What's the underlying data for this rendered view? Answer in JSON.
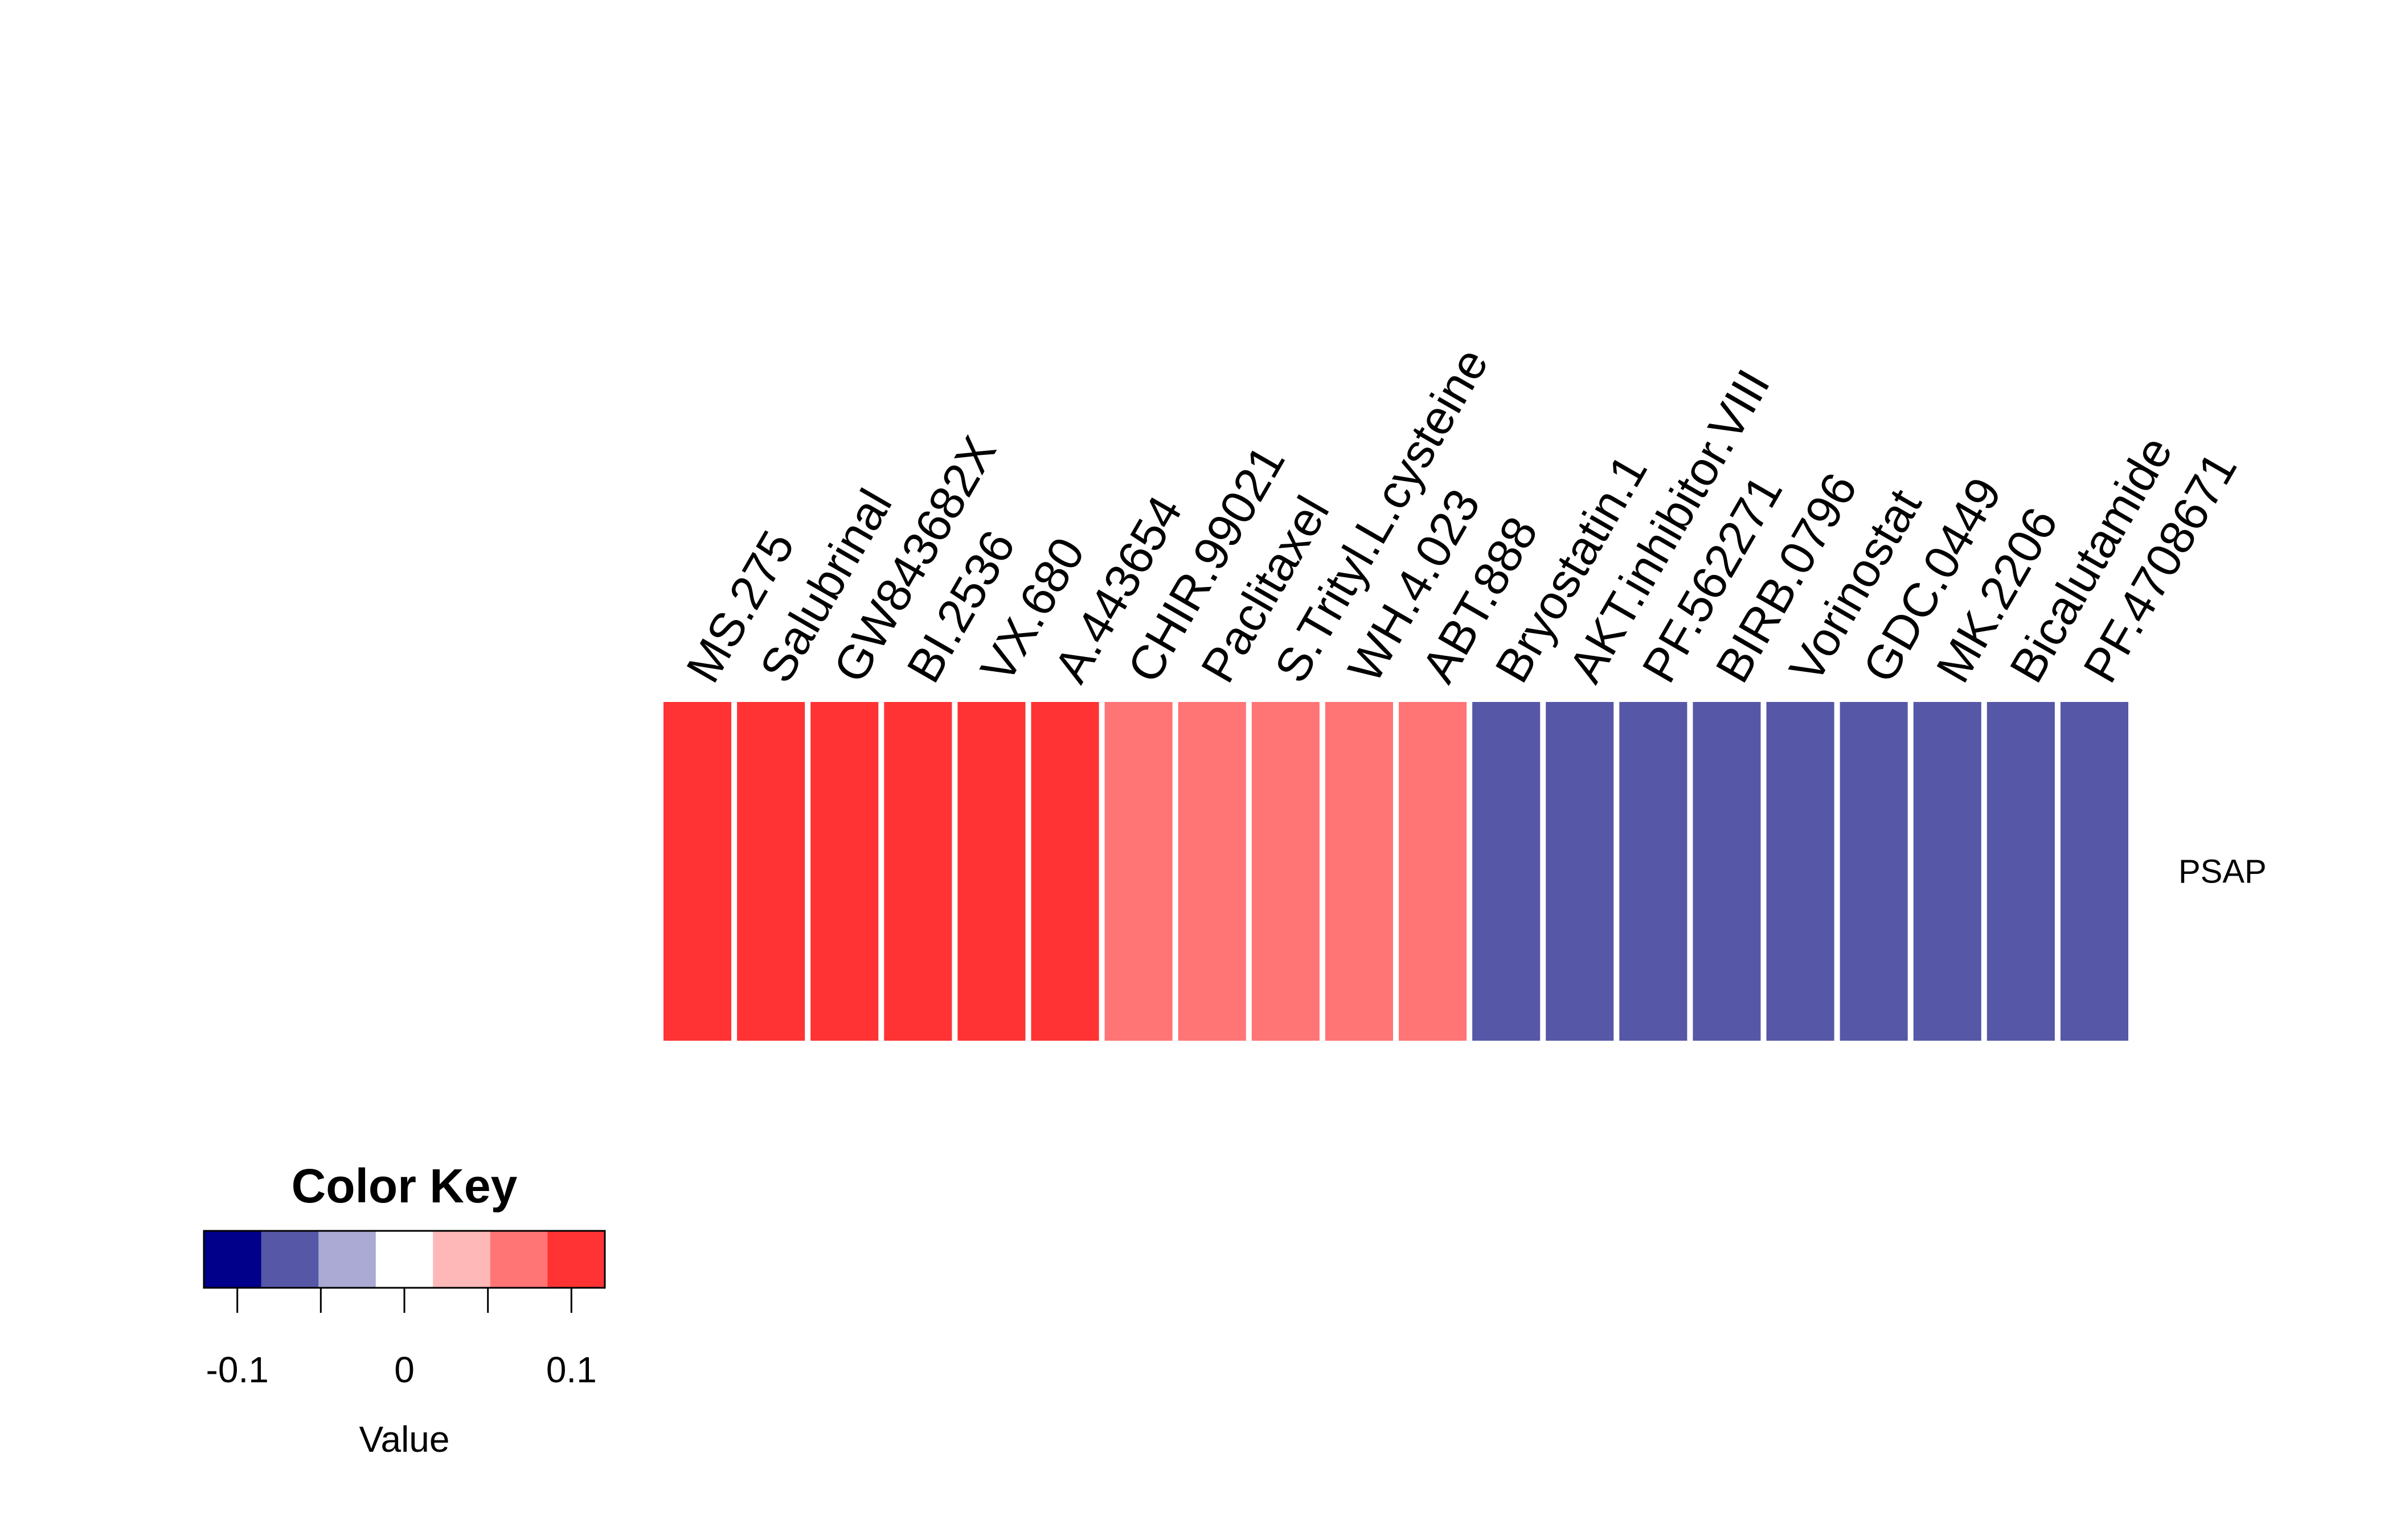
{
  "chart_data": {
    "type": "heatmap",
    "rows": [
      "PSAP"
    ],
    "columns": [
      "MS.275",
      "Salubrinal",
      "GW843682X",
      "BI.2536",
      "VX.680",
      "A.443654",
      "CHIR.99021",
      "Paclitaxel",
      "S.Trityl.L.cysteine",
      "WH.4.023",
      "ABT.888",
      "Bryostatin.1",
      "AKT.inhibitor.VIII",
      "PF.562271",
      "BIRB.0796",
      "Vorinostat",
      "GDC.0449",
      "MK.2206",
      "Bicalutamide",
      "PF.4708671"
    ],
    "values": [
      [
        0.11,
        0.11,
        0.11,
        0.11,
        0.11,
        0.11,
        0.07,
        0.07,
        0.07,
        0.07,
        0.07,
        -0.07,
        -0.07,
        -0.07,
        -0.07,
        -0.07,
        -0.07,
        -0.07,
        -0.07,
        -0.07
      ]
    ],
    "color_key": {
      "title": "Color Key",
      "xlabel": "Value",
      "range": [
        -0.12,
        0.12
      ],
      "breaks": [
        -0.12,
        -0.0857,
        -0.0514,
        -0.0171,
        0.0171,
        0.0514,
        0.0857,
        0.12
      ],
      "colors": [
        "#00008b",
        "#5757a8",
        "#aaaad5",
        "#ffffff",
        "#ffb8b8",
        "#ff7575",
        "#ff3333"
      ],
      "ticks": [
        {
          "value": -0.1,
          "label": "-0.1"
        },
        {
          "value": 0,
          "label": "0"
        },
        {
          "value": 0.1,
          "label": "0.1"
        }
      ],
      "minor_ticks": [
        -0.05,
        0.05
      ]
    }
  }
}
